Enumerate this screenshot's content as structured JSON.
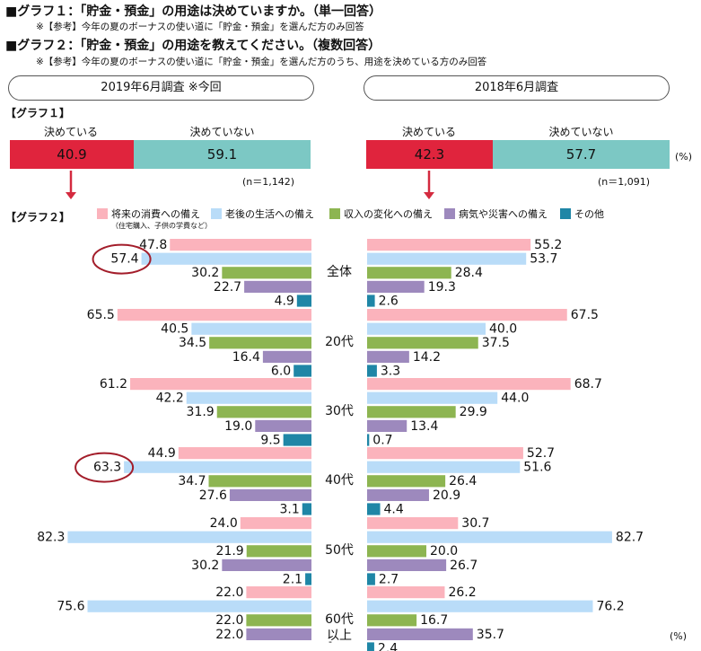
{
  "header": {
    "q1_title": "■グラフ１：「貯金・預金」の用途は決めていますか。（単一回答）",
    "q1_note": "※【参考】今年の夏のボーナスの使い道に「貯金・預金」を選んだ方のみ回答",
    "q2_title": "■グラフ２：「貯金・預金」の用途を教えてください。（複数回答）",
    "q2_note": "※【参考】今年の夏のボーナスの使い道に「貯金・預金」を選んだ方のうち、用途を決めている方のみ回答"
  },
  "surveys": {
    "left_label": "2019年6月調査 ※今回",
    "right_label": "2018年6月調査"
  },
  "graph1": {
    "label": "【グラフ１】",
    "decided_label": "決めている",
    "undecided_label": "決めていない",
    "left": {
      "decided": "40.9",
      "undecided": "59.1",
      "n": "(n＝1,142)"
    },
    "right": {
      "decided": "42.3",
      "undecided": "57.7",
      "n": "(n＝1,091)"
    },
    "percent_unit": "(%)"
  },
  "graph2": {
    "label": "【グラフ２】",
    "percent_unit": "(%)",
    "dash": "-"
  },
  "colors": {
    "decided": "#e0243d",
    "undecided": "#7cc8c4",
    "arrow": "#d42a3f",
    "circle": "#a31d2a"
  },
  "chart_data": [
    {
      "type": "bar",
      "title": "グラフ１：「貯金・預金」の用途は決めていますか。（単一回答）",
      "categories": [
        "2019年6月調査 ※今回",
        "2018年6月調査"
      ],
      "series": [
        {
          "name": "決めている",
          "values": [
            40.9,
            42.3
          ]
        },
        {
          "name": "決めていない",
          "values": [
            59.1,
            57.7
          ]
        }
      ],
      "ylabel": "(%)",
      "ylim": [
        0,
        100
      ]
    },
    {
      "type": "bar",
      "title": "グラフ２：「貯金・預金」の用途を教えてください。（複数回答）",
      "categories": [
        "全体",
        "20代",
        "30代",
        "40代",
        "50代",
        "60代"
      ],
      "category_sub": [
        "",
        "",
        "",
        "",
        "",
        "以上"
      ],
      "legend": [
        {
          "name": "将来の消費への備え",
          "note": "（住宅購入、子供の学費など）",
          "color": "#fbb3bc"
        },
        {
          "name": "老後の生活への備え",
          "note": "",
          "color": "#b9dcf8"
        },
        {
          "name": "収入の変化への備え",
          "note": "",
          "color": "#8db551"
        },
        {
          "name": "病気や災害への備え",
          "note": "",
          "color": "#9d89bd"
        },
        {
          "name": "その他",
          "note": "",
          "color": "#1f86a6"
        }
      ],
      "series_2019": [
        {
          "name": "将来の消費への備え",
          "values": [
            47.8,
            65.5,
            61.2,
            44.9,
            24.0,
            22.0
          ]
        },
        {
          "name": "老後の生活への備え",
          "values": [
            57.4,
            40.5,
            42.2,
            63.3,
            82.3,
            75.6
          ]
        },
        {
          "name": "収入の変化への備え",
          "values": [
            30.2,
            34.5,
            31.9,
            34.7,
            21.9,
            22.0
          ]
        },
        {
          "name": "病気や災害への備え",
          "values": [
            22.7,
            16.4,
            19.0,
            27.6,
            30.2,
            22.0
          ]
        },
        {
          "name": "その他",
          "values": [
            4.9,
            6.0,
            9.5,
            3.1,
            2.1,
            null
          ]
        }
      ],
      "series_2018": [
        {
          "name": "将来の消費への備え",
          "values": [
            55.2,
            67.5,
            68.7,
            52.7,
            30.7,
            26.2
          ]
        },
        {
          "name": "老後の生活への備え",
          "values": [
            53.7,
            40.0,
            44.0,
            51.6,
            82.7,
            76.2
          ]
        },
        {
          "name": "収入の変化への備え",
          "values": [
            28.4,
            37.5,
            29.9,
            26.4,
            20.0,
            16.7
          ]
        },
        {
          "name": "病気や災害への備え",
          "values": [
            19.3,
            14.2,
            13.4,
            20.9,
            26.7,
            35.7
          ]
        },
        {
          "name": "その他",
          "values": [
            2.6,
            3.3,
            0.7,
            4.4,
            2.7,
            2.4
          ]
        }
      ],
      "highlighted_2019": [
        [
          0,
          1
        ],
        [
          3,
          1
        ]
      ],
      "ylabel": "(%)",
      "xlim": [
        0,
        100
      ]
    }
  ]
}
